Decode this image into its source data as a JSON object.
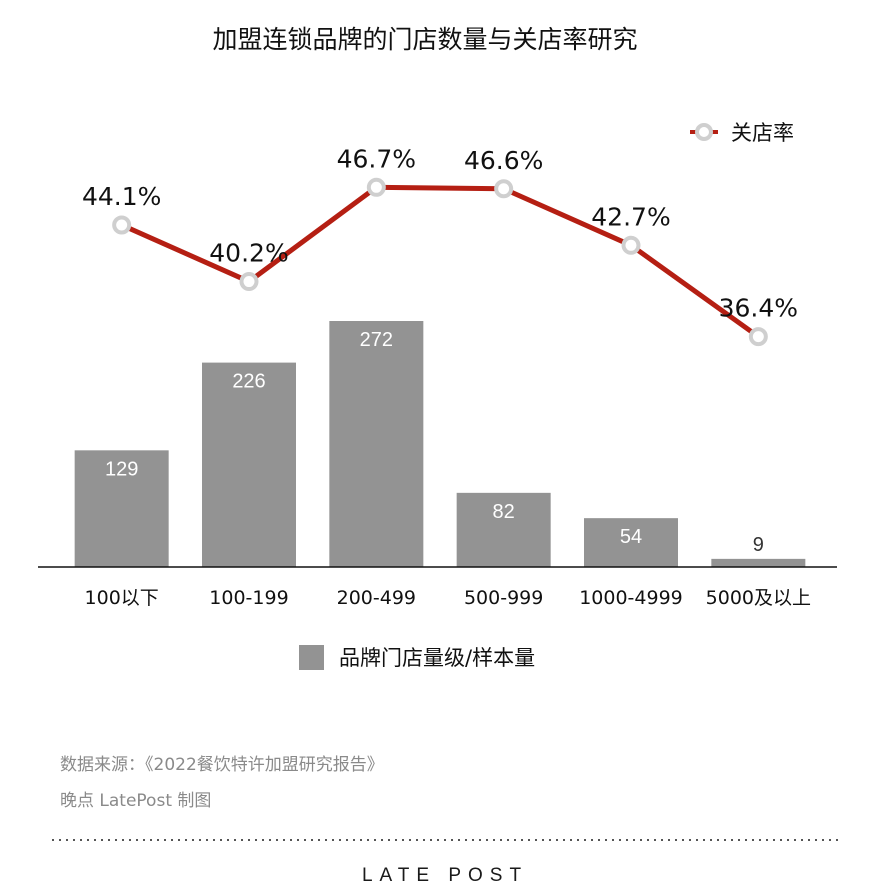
{
  "chart_data": {
    "type": "bar",
    "title": "加盟连锁品牌的门店数量与关店率研究",
    "categories": [
      "100以下",
      "100-199",
      "200-499",
      "500-999",
      "1000-4999",
      "5000及以上"
    ],
    "series": [
      {
        "name": "品牌门店量级/样本量",
        "type": "bar",
        "color": "#939393",
        "values": [
          129,
          226,
          272,
          82,
          54,
          9
        ],
        "labels": [
          "129",
          "226",
          "272",
          "82",
          "54",
          "9"
        ]
      },
      {
        "name": "关店率",
        "type": "line",
        "color": "#b51f13",
        "values": [
          44.1,
          40.2,
          46.7,
          46.6,
          42.7,
          36.4
        ],
        "labels": [
          "44.1%",
          "40.2%",
          "46.7%",
          "46.6%",
          "42.7%",
          "36.4%"
        ]
      }
    ],
    "legend_position": "top-right (line), bottom-center (bar)",
    "grid": false
  },
  "footer": {
    "source": "数据来源：《2022餐饮特许加盟研究报告》",
    "credit": "晚点 LatePost 制图",
    "brand": "LATE POST"
  }
}
